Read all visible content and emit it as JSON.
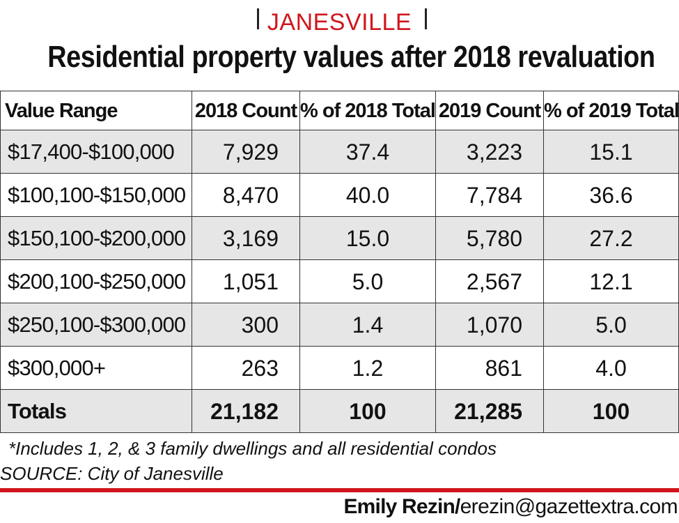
{
  "kicker": "JANESVILLE",
  "title": "Residential property values after 2018 revaluation",
  "chart_data": {
    "type": "table",
    "title": "Residential property values after 2018 revaluation",
    "columns": [
      "Value Range",
      "2018 Count",
      "% of 2018 Total",
      "2019 Count",
      "% of 2019 Total"
    ],
    "rows": [
      {
        "range": "$17,400-$100,000",
        "count_2018": "7,929",
        "pct_2018": "37.4",
        "count_2019": "3,223",
        "pct_2019": "15.1"
      },
      {
        "range": "$100,100-$150,000",
        "count_2018": "8,470",
        "pct_2018": "40.0",
        "count_2019": "7,784",
        "pct_2019": "36.6"
      },
      {
        "range": "$150,100-$200,000",
        "count_2018": "3,169",
        "pct_2018": "15.0",
        "count_2019": "5,780",
        "pct_2019": "27.2"
      },
      {
        "range": "$200,100-$250,000",
        "count_2018": "1,051",
        "pct_2018": "5.0",
        "count_2019": "2,567",
        "pct_2019": "12.1"
      },
      {
        "range": "$250,100-$300,000",
        "count_2018": "300",
        "pct_2018": "1.4",
        "count_2019": "1,070",
        "pct_2019": "5.0"
      },
      {
        "range": "$300,000+",
        "count_2018": "263",
        "pct_2018": "1.2",
        "count_2019": "861",
        "pct_2019": "4.0"
      }
    ],
    "totals": {
      "range": "Totals",
      "count_2018": "21,182",
      "pct_2018": "100",
      "count_2019": "21,285",
      "pct_2019": "100"
    }
  },
  "footnote": "*Includes 1, 2, & 3 family dwellings and all residential condos",
  "source": "SOURCE: City of Janesville",
  "credit": {
    "name": "Emily Rezin/",
    "email": "erezin@gazettextra.com"
  },
  "colors": {
    "accent": "#d0161c",
    "shade": "#e6e6e6",
    "text": "#111111"
  }
}
